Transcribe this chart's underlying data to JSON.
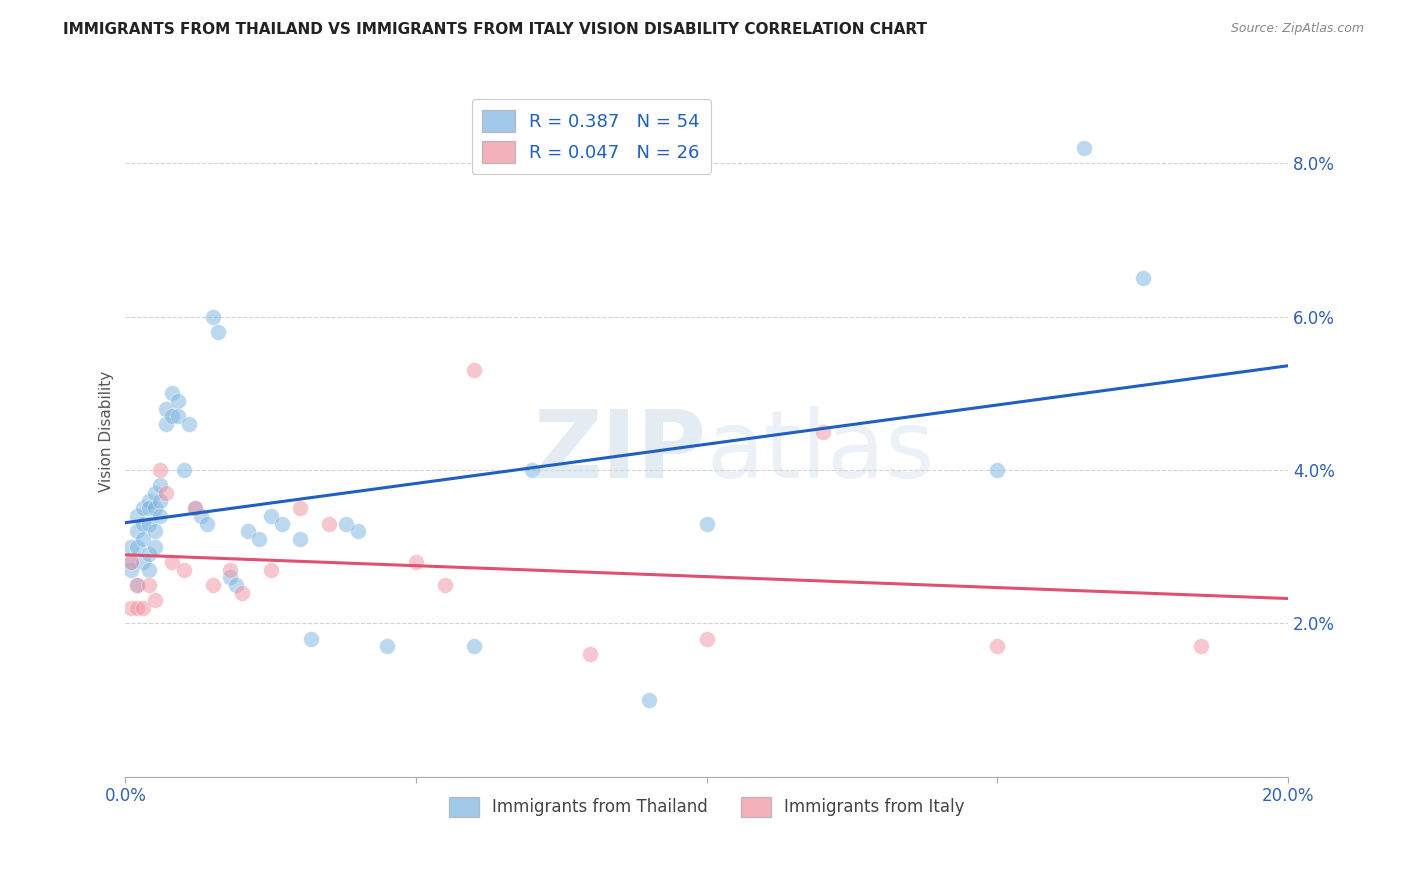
{
  "title": "IMMIGRANTS FROM THAILAND VS IMMIGRANTS FROM ITALY VISION DISABILITY CORRELATION CHART",
  "source": "Source: ZipAtlas.com",
  "ylabel": "Vision Disability",
  "xlabel": "",
  "xlim": [
    0.0,
    0.2
  ],
  "ylim": [
    0.0,
    0.09
  ],
  "xtick_vals": [
    0.0,
    0.05,
    0.1,
    0.15,
    0.2
  ],
  "ytick_vals": [
    0.0,
    0.02,
    0.04,
    0.06,
    0.08
  ],
  "background_color": "#ffffff",
  "grid_color": "#d0d0d0",
  "watermark": "ZIPatlas",
  "thailand_color": "#7ab3e0",
  "italy_color": "#f090a0",
  "thailand_line_color": "#2060c0",
  "italy_line_color": "#e05070",
  "thailand_R": 0.387,
  "thailand_N": 54,
  "italy_R": 0.047,
  "italy_N": 26,
  "thailand_x": [
    0.001,
    0.001,
    0.001,
    0.002,
    0.002,
    0.002,
    0.002,
    0.003,
    0.003,
    0.003,
    0.003,
    0.004,
    0.004,
    0.004,
    0.004,
    0.004,
    0.005,
    0.005,
    0.005,
    0.005,
    0.006,
    0.006,
    0.006,
    0.007,
    0.007,
    0.008,
    0.008,
    0.009,
    0.009,
    0.01,
    0.011,
    0.012,
    0.013,
    0.014,
    0.015,
    0.016,
    0.018,
    0.019,
    0.021,
    0.023,
    0.025,
    0.027,
    0.03,
    0.032,
    0.038,
    0.04,
    0.045,
    0.06,
    0.07,
    0.09,
    0.1,
    0.15,
    0.165,
    0.175
  ],
  "thailand_y": [
    0.027,
    0.03,
    0.028,
    0.032,
    0.034,
    0.03,
    0.025,
    0.035,
    0.033,
    0.031,
    0.028,
    0.036,
    0.035,
    0.033,
    0.029,
    0.027,
    0.037,
    0.035,
    0.032,
    0.03,
    0.038,
    0.036,
    0.034,
    0.048,
    0.046,
    0.05,
    0.047,
    0.049,
    0.047,
    0.04,
    0.046,
    0.035,
    0.034,
    0.033,
    0.06,
    0.058,
    0.026,
    0.025,
    0.032,
    0.031,
    0.034,
    0.033,
    0.031,
    0.018,
    0.033,
    0.032,
    0.017,
    0.017,
    0.04,
    0.01,
    0.033,
    0.04,
    0.082,
    0.065
  ],
  "italy_x": [
    0.001,
    0.001,
    0.002,
    0.002,
    0.003,
    0.004,
    0.005,
    0.006,
    0.007,
    0.008,
    0.01,
    0.012,
    0.015,
    0.018,
    0.02,
    0.025,
    0.03,
    0.035,
    0.05,
    0.055,
    0.06,
    0.08,
    0.1,
    0.12,
    0.15,
    0.185
  ],
  "italy_y": [
    0.028,
    0.022,
    0.025,
    0.022,
    0.022,
    0.025,
    0.023,
    0.04,
    0.037,
    0.028,
    0.027,
    0.035,
    0.025,
    0.027,
    0.024,
    0.027,
    0.035,
    0.033,
    0.028,
    0.025,
    0.053,
    0.016,
    0.018,
    0.045,
    0.017,
    0.017
  ]
}
